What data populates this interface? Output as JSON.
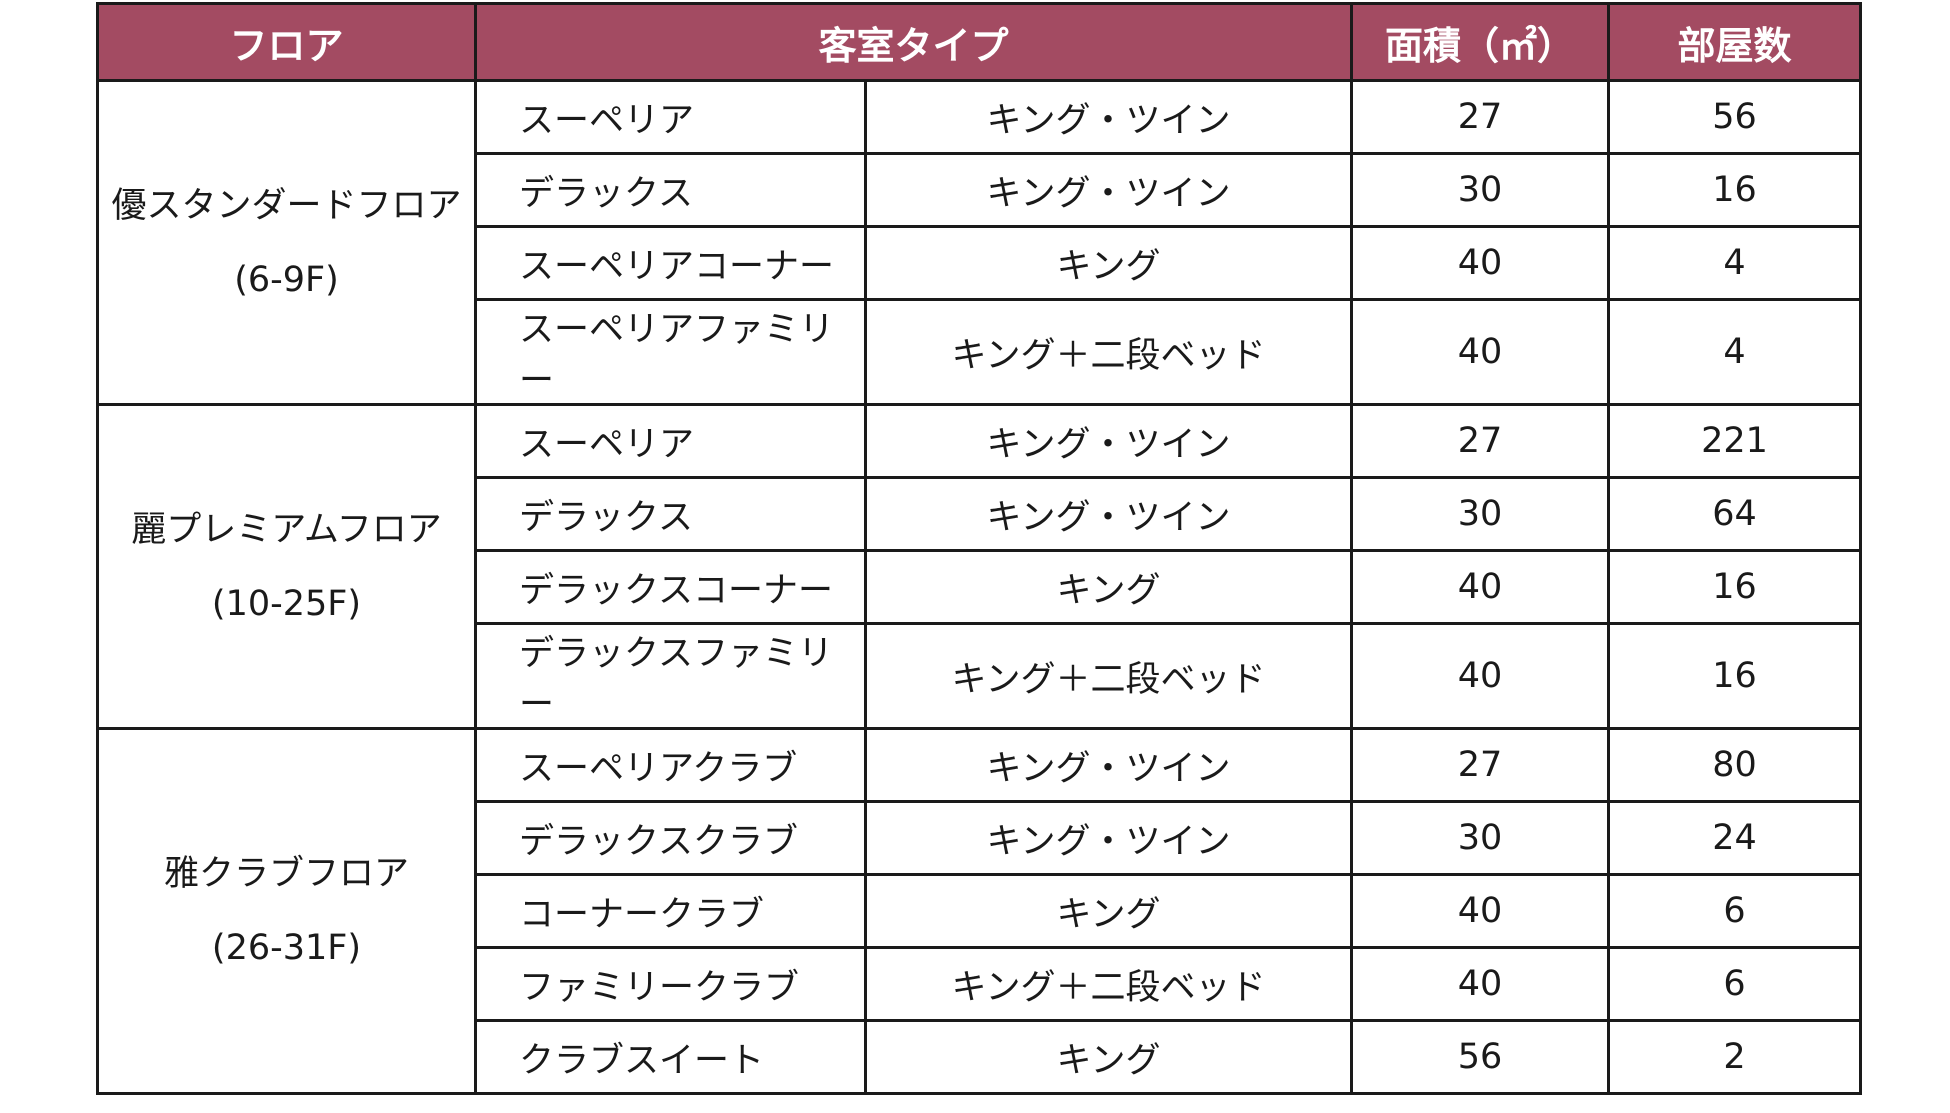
{
  "header": {
    "floor": "フロア",
    "room_type": "客室タイプ",
    "area": "面積（㎡）",
    "rooms": "部屋数"
  },
  "floors": [
    {
      "name": "優スタンダードフロア",
      "range": "(6-9F)",
      "rows": [
        {
          "type": "スーペリア",
          "bed": "キング・ツイン",
          "area": "27",
          "rooms": "56"
        },
        {
          "type": "デラックス",
          "bed": "キング・ツイン",
          "area": "30",
          "rooms": "16"
        },
        {
          "type": "スーペリアコーナー",
          "bed": "キング",
          "area": "40",
          "rooms": "4"
        },
        {
          "type": "スーペリアファミリー",
          "bed": "キング＋二段ベッド",
          "area": "40",
          "rooms": "4"
        }
      ]
    },
    {
      "name": "麗プレミアムフロア",
      "range": "(10-25F)",
      "rows": [
        {
          "type": "スーペリア",
          "bed": "キング・ツイン",
          "area": "27",
          "rooms": "221"
        },
        {
          "type": "デラックス",
          "bed": "キング・ツイン",
          "area": "30",
          "rooms": "64"
        },
        {
          "type": "デラックスコーナー",
          "bed": "キング",
          "area": "40",
          "rooms": "16"
        },
        {
          "type": "デラックスファミリー",
          "bed": "キング＋二段ベッド",
          "area": "40",
          "rooms": "16"
        }
      ]
    },
    {
      "name": "雅クラブフロア",
      "range": "(26-31F)",
      "rows": [
        {
          "type": "スーペリアクラブ",
          "bed": "キング・ツイン",
          "area": "27",
          "rooms": "80"
        },
        {
          "type": "デラックスクラブ",
          "bed": "キング・ツイン",
          "area": "30",
          "rooms": "24"
        },
        {
          "type": "コーナークラブ",
          "bed": "キング",
          "area": "40",
          "rooms": "6"
        },
        {
          "type": "ファミリークラブ",
          "bed": "キング＋二段ベッド",
          "area": "40",
          "rooms": "6"
        },
        {
          "type": "クラブスイート",
          "bed": "キング",
          "area": "56",
          "rooms": "2"
        }
      ]
    }
  ],
  "colors": {
    "header_bg": "#a34b62",
    "header_text": "#ffffff",
    "border": "#1a1a1a"
  }
}
